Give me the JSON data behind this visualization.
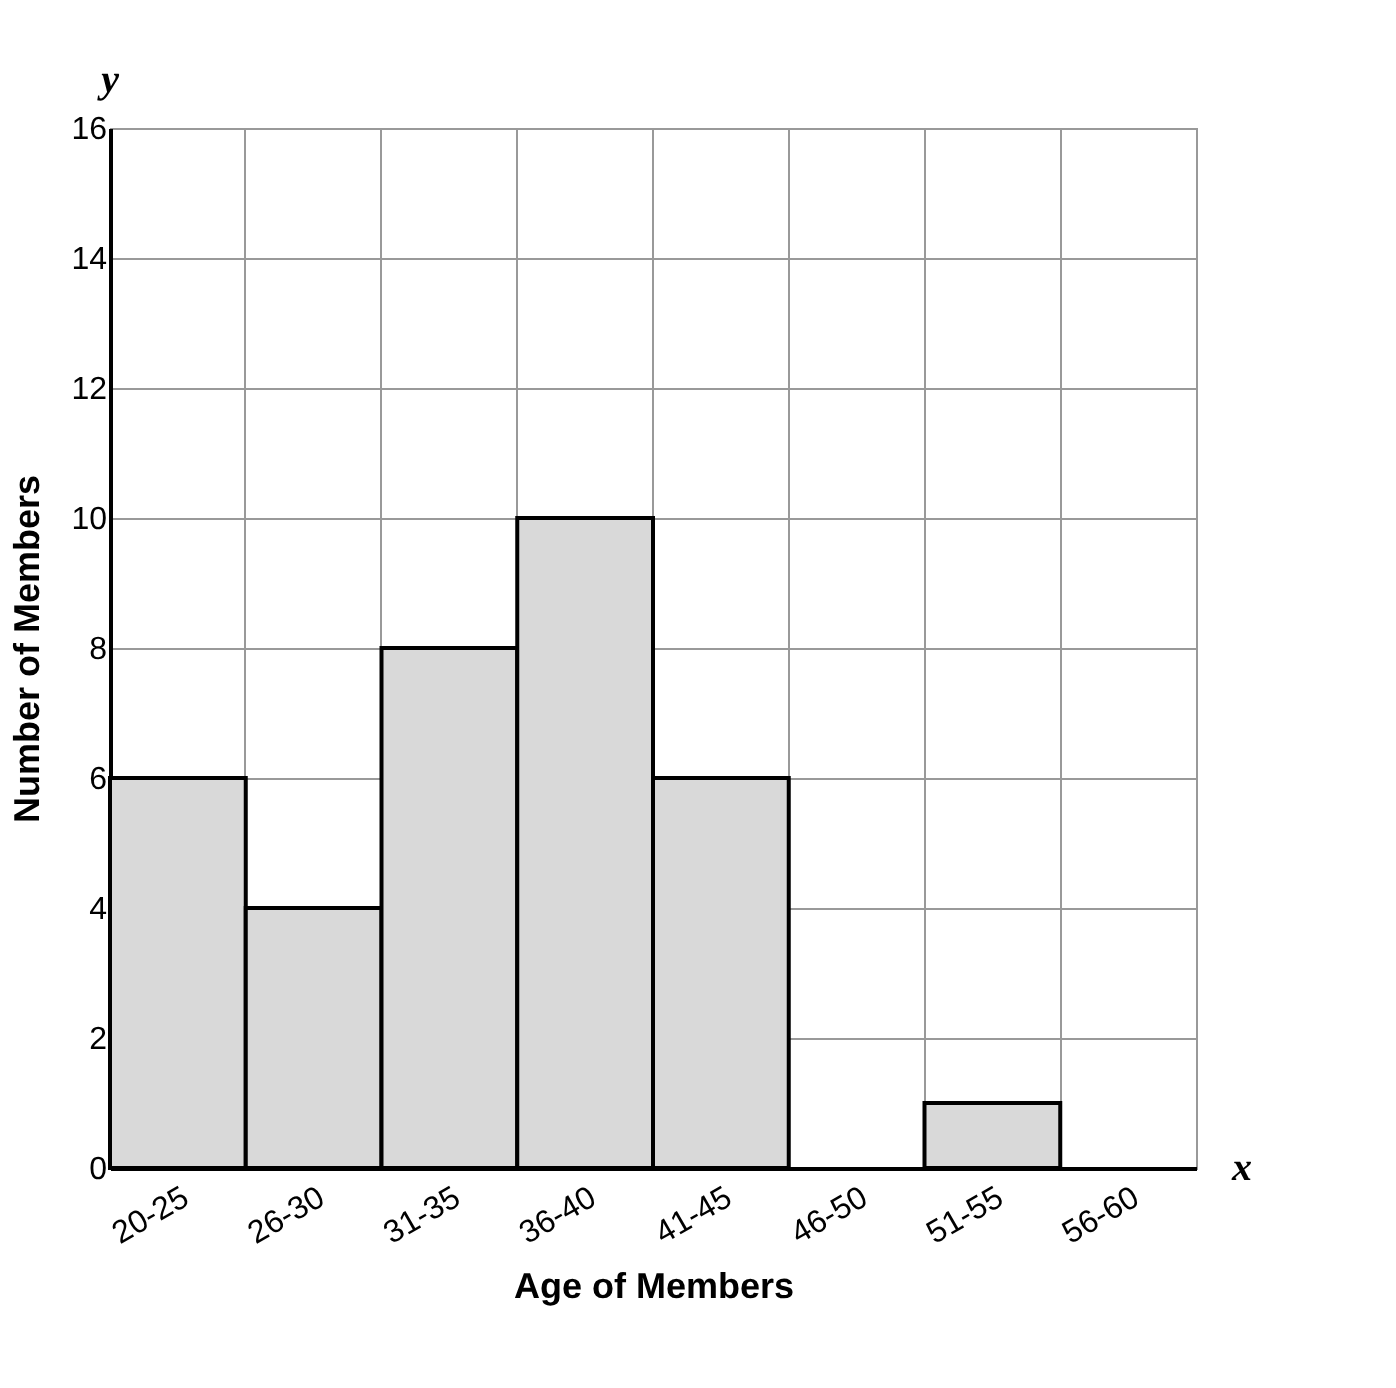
{
  "chart_data": {
    "type": "bar",
    "xlabel": "Age of Members",
    "ylabel": "Number of Members",
    "categories": [
      "20-25",
      "26-30",
      "31-35",
      "36-40",
      "41-45",
      "46-50",
      "51-55",
      "56-60"
    ],
    "values": [
      6,
      4,
      8,
      10,
      6,
      0,
      1,
      0
    ],
    "color": "#d9d9d9",
    "ylim": [
      0,
      16
    ],
    "yticks": [
      0,
      2,
      4,
      6,
      8,
      10,
      12,
      14,
      16
    ],
    "grid": true,
    "annotations": [
      "y",
      "x"
    ]
  }
}
